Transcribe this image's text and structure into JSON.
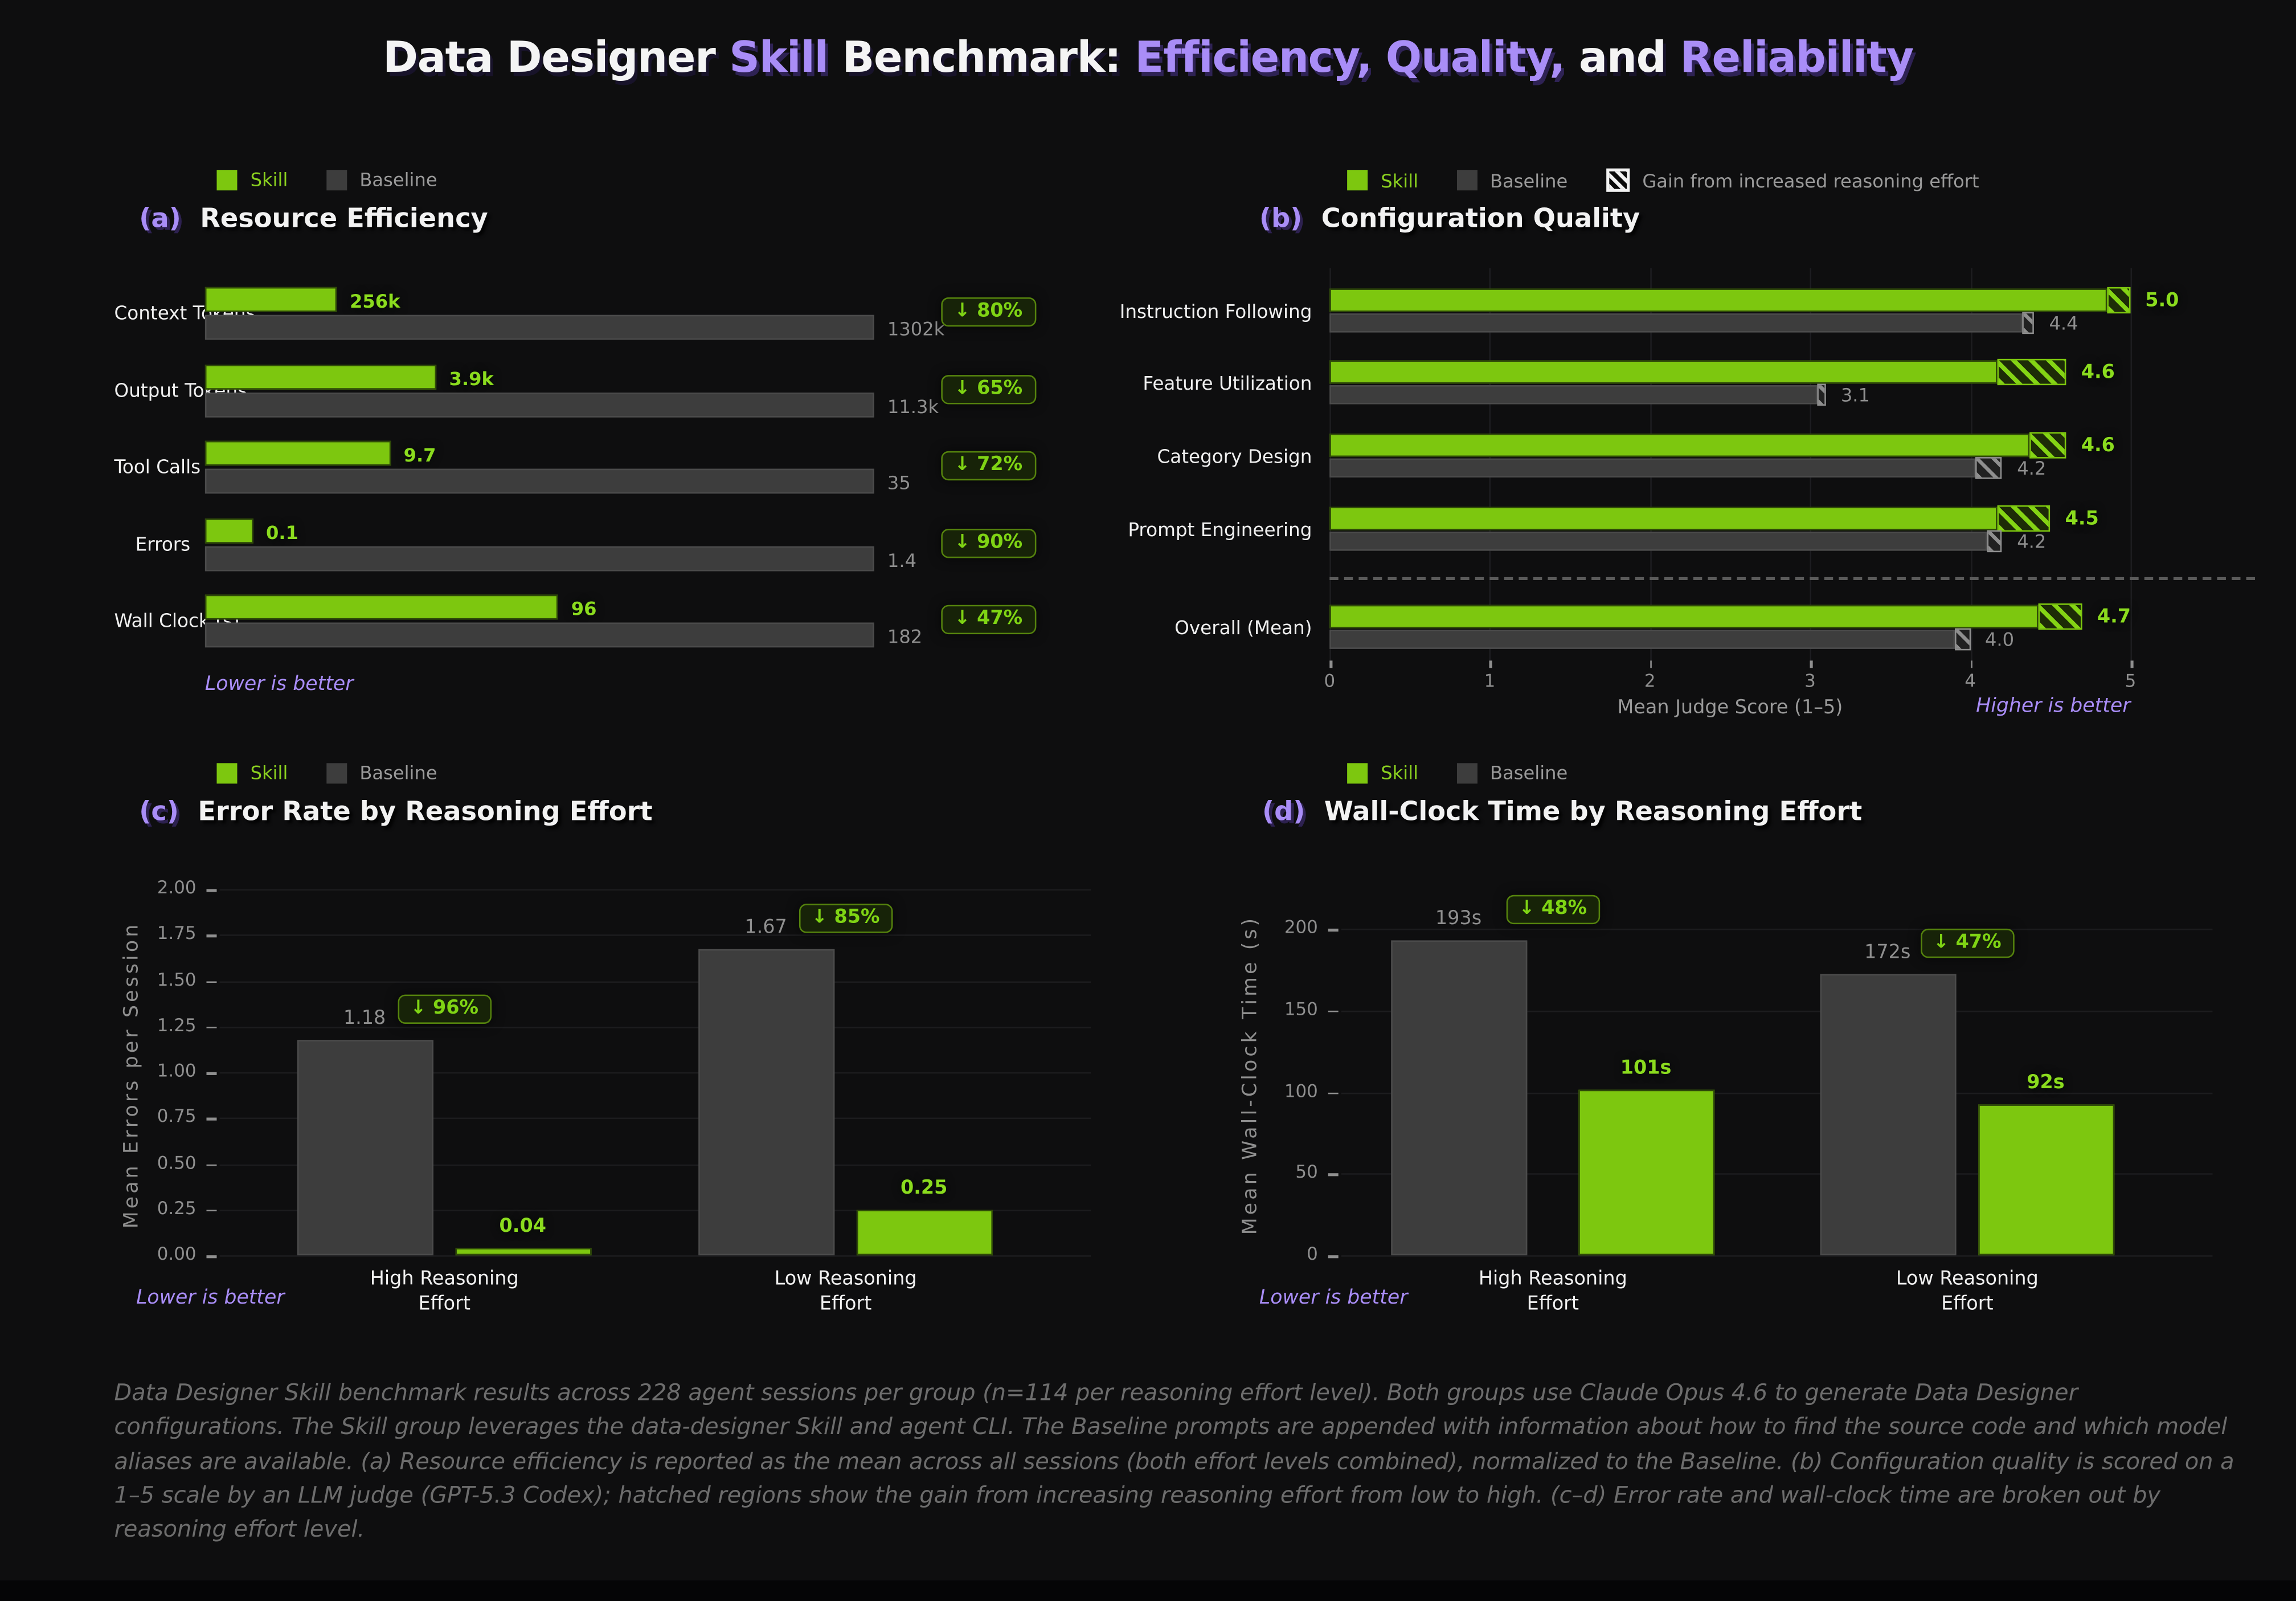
{
  "page_title": {
    "t1": "Data Designer ",
    "t2": "Skill",
    "t3": " Benchmark: ",
    "t4": "Efficiency, Quality,",
    "t5": " and ",
    "t6": "Reliability"
  },
  "legends": {
    "skill": "Skill",
    "baseline": "Baseline",
    "gain": "Gain from increased reasoning effort"
  },
  "panels": {
    "a": {
      "label": "(a)",
      "heading": "Resource Efficiency",
      "note": "Lower is better"
    },
    "b": {
      "label": "(b)",
      "heading": "Configuration Quality",
      "note": "Higher is better",
      "xlabel": "Mean Judge Score (1–5)"
    },
    "c": {
      "label": "(c)",
      "heading": "Error Rate by Reasoning Effort",
      "note": "Lower is better",
      "ylabel": "Mean Errors per Session"
    },
    "d": {
      "label": "(d)",
      "heading": "Wall-Clock Time by Reasoning Effort",
      "note": "Lower is better",
      "ylabel": "Mean Wall-Clock Time (s)"
    }
  },
  "colors": {
    "skill_green": "#7dc70f",
    "baseline_gray": "#3d3d3d",
    "accent_purple": "#a98df7",
    "badge_green": "#7fd414",
    "background": "#0e0e0f"
  },
  "caption": "Data Designer Skill benchmark results across 228 agent sessions per group (n=114 per reasoning effort level). Both groups use Claude Opus 4.6 to generate Data Designer configurations. The Skill group leverages the data-designer Skill and agent CLI. The Baseline prompts are appended with information about how to find the source code and which model aliases are available. (a) Resource efficiency is reported as the mean across all sessions (both effort levels combined), normalized to the Baseline. (b) Configuration quality is scored on a 1–5 scale by an LLM judge (GPT-5.3 Codex); hatched regions show the gain from increasing reasoning effort from low to high. (c–d) Error rate and wall-clock time are broken out by reasoning effort level.",
  "chart_data": [
    {
      "id": "a",
      "type": "bar",
      "orientation": "horizontal",
      "title": "Resource Efficiency",
      "series": [
        "Skill",
        "Baseline"
      ],
      "note": "Lower is better",
      "rows": [
        {
          "category": "Context Tokens",
          "skill": 256,
          "skill_label": "256k",
          "baseline": 1302,
          "baseline_label": "1302k",
          "reduction": "↓ 80%"
        },
        {
          "category": "Output Tokens",
          "skill": 3.9,
          "skill_label": "3.9k",
          "baseline": 11.3,
          "baseline_label": "11.3k",
          "reduction": "↓ 65%"
        },
        {
          "category": "Tool Calls",
          "skill": 9.7,
          "skill_label": "9.7",
          "baseline": 35,
          "baseline_label": "35",
          "reduction": "↓ 72%"
        },
        {
          "category": "Errors",
          "skill": 0.1,
          "skill_label": "0.1",
          "baseline": 1.4,
          "baseline_label": "1.4",
          "reduction": "↓ 90%"
        },
        {
          "category": "Wall Clock (s)",
          "skill": 96,
          "skill_label": "96",
          "baseline": 182,
          "baseline_label": "182",
          "reduction": "↓ 47%"
        }
      ]
    },
    {
      "id": "b",
      "type": "bar",
      "orientation": "horizontal",
      "title": "Configuration Quality",
      "series": [
        "Skill",
        "Baseline"
      ],
      "xlabel": "Mean Judge Score (1–5)",
      "xlim": [
        0,
        5
      ],
      "xticks": [
        0,
        1,
        2,
        3,
        4,
        5
      ],
      "note": "Higher is better",
      "hatch_meaning": "Gain from increased reasoning effort",
      "rows": [
        {
          "category": "Instruction Following",
          "skill": 5.0,
          "skill_label": "5.0",
          "skill_low": 4.85,
          "baseline": 4.4,
          "baseline_label": "4.4",
          "baseline_low": 4.32
        },
        {
          "category": "Feature Utilization",
          "skill": 4.6,
          "skill_label": "4.6",
          "skill_low": 4.17,
          "baseline": 3.1,
          "baseline_label": "3.1",
          "baseline_low": 3.04
        },
        {
          "category": "Category Design",
          "skill": 4.6,
          "skill_label": "4.6",
          "skill_low": 4.37,
          "baseline": 4.2,
          "baseline_label": "4.2",
          "baseline_low": 4.03
        },
        {
          "category": "Prompt Engineering",
          "skill": 4.5,
          "skill_label": "4.5",
          "skill_low": 4.17,
          "baseline": 4.2,
          "baseline_label": "4.2",
          "baseline_low": 4.1
        },
        {
          "category": "Overall (Mean)",
          "skill": 4.7,
          "skill_label": "4.7",
          "skill_low": 4.42,
          "baseline": 4.0,
          "baseline_label": "4.0",
          "baseline_low": 3.9,
          "separated": true
        }
      ]
    },
    {
      "id": "c",
      "type": "bar",
      "orientation": "vertical",
      "title": "Error Rate by Reasoning Effort",
      "ylabel": "Mean Errors per Session",
      "ylim": [
        0,
        2
      ],
      "yticks": [
        0,
        0.25,
        0.5,
        0.75,
        1,
        1.25,
        1.5,
        1.75,
        2
      ],
      "categories": [
        "High Reasoning\nEffort",
        "Low Reasoning\nEffort"
      ],
      "series": [
        {
          "name": "Baseline",
          "values": [
            1.18,
            1.67
          ],
          "labels": [
            "1.18",
            "1.67"
          ]
        },
        {
          "name": "Skill",
          "values": [
            0.04,
            0.25
          ],
          "labels": [
            "0.04",
            "0.25"
          ]
        }
      ],
      "badges": [
        "↓ 96%",
        "↓ 85%"
      ],
      "note": "Lower is better"
    },
    {
      "id": "d",
      "type": "bar",
      "orientation": "vertical",
      "title": "Wall-Clock Time by Reasoning Effort",
      "ylabel": "Mean Wall-Clock Time (s)",
      "ylim": [
        0,
        200
      ],
      "yticks": [
        0,
        50,
        100,
        150,
        200
      ],
      "categories": [
        "High Reasoning\nEffort",
        "Low Reasoning\nEffort"
      ],
      "series": [
        {
          "name": "Baseline",
          "values": [
            193,
            172
          ],
          "labels": [
            "193s",
            "172s"
          ]
        },
        {
          "name": "Skill",
          "values": [
            101,
            92
          ],
          "labels": [
            "101s",
            "92s"
          ]
        }
      ],
      "badges": [
        "↓ 48%",
        "↓ 47%"
      ],
      "note": "Lower is better"
    }
  ]
}
